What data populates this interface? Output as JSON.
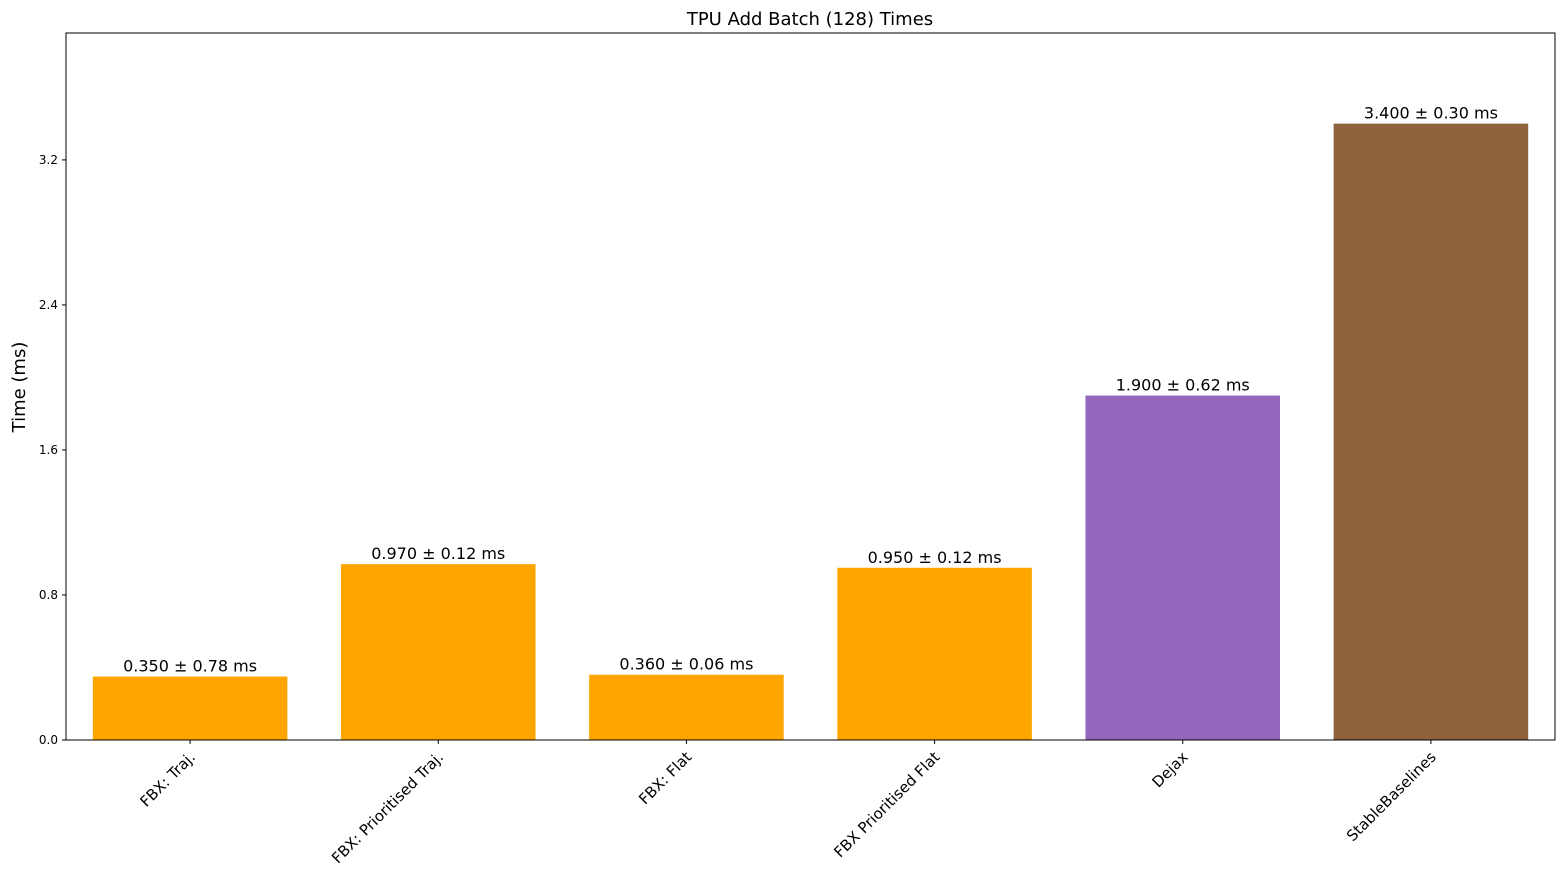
{
  "chart_data": {
    "type": "bar",
    "title": "TPU Add Batch (128) Times",
    "xlabel": "",
    "ylabel": "Time (ms)",
    "ylim": [
      0,
      3.9
    ],
    "yticks": [
      "0.0",
      "0.8",
      "1.6",
      "2.4",
      "3.2"
    ],
    "grid": false,
    "categories": [
      "FBX: Traj.",
      "FBX: Prioritised Traj.",
      "FBX: Flat",
      "FBX Prioritised Flat",
      "Dejax",
      "StableBaselines"
    ],
    "values": [
      0.35,
      0.97,
      0.36,
      0.95,
      1.9,
      3.4
    ],
    "errors": [
      0.78,
      0.12,
      0.06,
      0.12,
      0.62,
      0.3
    ],
    "data_labels": [
      "0.350 ± 0.78 ms",
      "0.970 ± 0.12 ms",
      "0.360 ± 0.06 ms",
      "0.950 ± 0.12 ms",
      "1.900 ± 0.62 ms",
      "3.400 ± 0.30 ms"
    ],
    "colors": [
      "#FFA500",
      "#FFA500",
      "#FFA500",
      "#FFA500",
      "#9467BD",
      "#8C613C"
    ]
  }
}
